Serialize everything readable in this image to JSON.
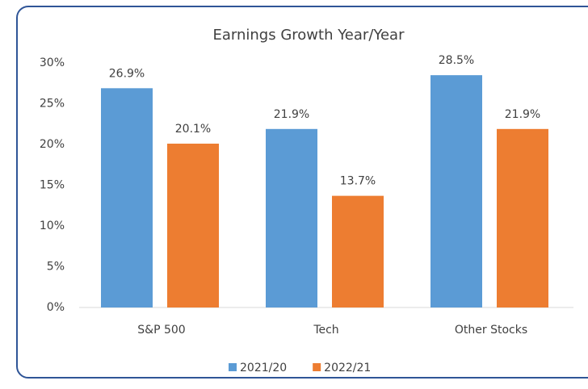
{
  "chart_data": {
    "type": "bar",
    "title": "Earnings Growth Year/Year",
    "categories": [
      "S&P 500",
      "Tech",
      "Other Stocks"
    ],
    "series": [
      {
        "name": "2021/20",
        "color": "#5b9bd5",
        "values": [
          26.9,
          21.9,
          28.5
        ],
        "value_labels": [
          "26.9%",
          "21.9%",
          "28.5%"
        ]
      },
      {
        "name": "2022/21",
        "color": "#ed7d31",
        "values": [
          20.1,
          13.7,
          21.9
        ],
        "value_labels": [
          "20.1%",
          "13.7%",
          "21.9%"
        ]
      }
    ],
    "ylim": [
      0,
      30
    ],
    "yticks": [
      {
        "value": 0,
        "label": "0%"
      },
      {
        "value": 5,
        "label": "5%"
      },
      {
        "value": 10,
        "label": "10%"
      },
      {
        "value": 15,
        "label": "15%"
      },
      {
        "value": 20,
        "label": "20%"
      },
      {
        "value": 25,
        "label": "25%"
      },
      {
        "value": 30,
        "label": "30%"
      }
    ],
    "grid": false,
    "legend": "bottom"
  }
}
